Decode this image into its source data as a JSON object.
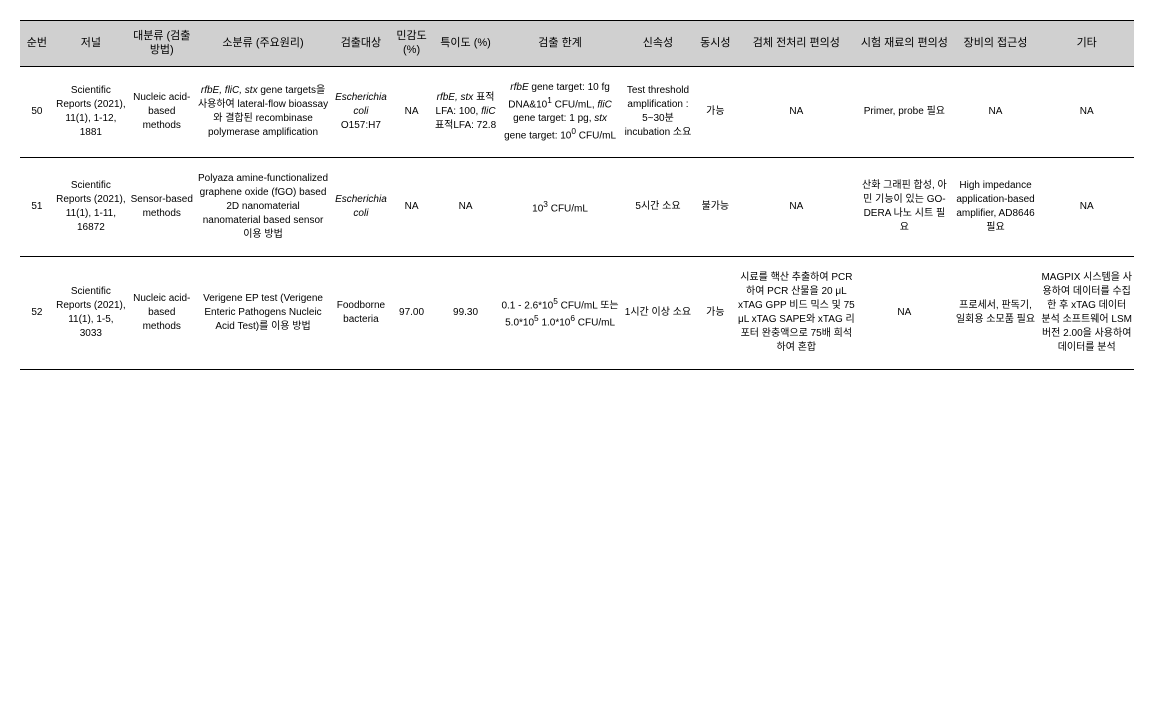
{
  "header": {
    "num": "순번",
    "journal": "저널",
    "category": "대분류\n(검출방법)",
    "subcategory": "소분류\n(주요원리)",
    "target": "검출대상",
    "sensitivity": "민감도(%)",
    "specificity": "특이도\n(%)",
    "limit": "검출\n한계",
    "speed": "신속성",
    "simultaneity": "동시성",
    "pretreatment": "검체 전처리\n편의성",
    "test_material": "시험\n재료의\n편의성",
    "equipment": "장비의\n접근성",
    "etc": "기타"
  },
  "rows": [
    {
      "num": "50",
      "journal": "Scientific Reports (2021), 11(1), 1-12, 1881",
      "category": "Nucleic acid-based methods",
      "subcategory_pre": "",
      "subcategory_italic": "rfbE, fliC, stx",
      "subcategory_post": " gene targets을 사용하여 lateral-flow bioassay와 결합된 recombinase polymerase amplification",
      "target_italic": "Escherichia coli",
      "target_post": " O157:H7",
      "sensitivity": "NA",
      "specificity_html": "<span class=\"italic\">rfbE, stx</span> 표적LFA: 100, <span class=\"italic\">fliC</span> 표적LFA: 72.8",
      "limit_html": "<span class=\"italic\">rfbE</span> gene target: 10 fg DNA&10<sup>1</sup> CFU/mL, <span class=\"italic\">fliC</span> gene target: 1 pg, <span class=\"italic\">stx</span> gene target: 10<sup>0</sup> CFU/mL",
      "speed": "Test threshold amplification : 5~30분 incubation 소요",
      "simultaneity": "가능",
      "pretreatment": "NA",
      "test_material": "Primer, probe 필요",
      "equipment": "NA",
      "etc": "NA"
    },
    {
      "num": "51",
      "journal": "Scientific Reports (2021), 11(1), 1-11, 16872",
      "category": "Sensor-based methods",
      "subcategory_pre": "Polyaza amine-functionalized graphene oxide (fGO) based 2D nanomaterial nanomaterial based sensor 이용 방법",
      "subcategory_italic": "",
      "subcategory_post": "",
      "target_italic": "Escherichia coli",
      "target_post": "",
      "sensitivity": "NA",
      "specificity_html": "NA",
      "limit_html": "10<sup>3</sup> CFU/mL",
      "speed": "5시간 소요",
      "simultaneity": "불가능",
      "pretreatment": "NA",
      "test_material": "산화 그래핀 합성, 아민 기능이 있는 GO-DERA 나노 시트 필요",
      "equipment": "High impedance application-based amplifier, AD8646 필요",
      "etc": "NA"
    },
    {
      "num": "52",
      "journal": "Scientific Reports (2021), 11(1), 1-5, 3033",
      "category": "Nucleic acid-based methods",
      "subcategory_pre": "Verigene EP test (Verigene Enteric Pathogens Nucleic Acid Test)를 이용 방법",
      "subcategory_italic": "",
      "subcategory_post": "",
      "target_italic": "",
      "target_post": "Foodborne bacteria",
      "sensitivity": "97.00",
      "specificity_html": "99.30",
      "limit_html": "0.1 - 2.6*10<sup>5</sup> CFU/mL 또는 5.0*10<sup>5</sup> 1.0*10<sup>6</sup> CFU/mL",
      "speed": "1시간 이상 소요",
      "simultaneity": "가능",
      "pretreatment": "시료를 핵산 추출하여 PCR하여 PCR 산물을 20 μL xTAG GPP 비드 믹스 및 75 μL xTAG SAPE와 xTAG 리포터 완충액으로 75배 희석하여 혼합",
      "test_material": "NA",
      "equipment": "프로세서, 판독기, 일회용 소모품 필요",
      "etc": "MAGPIX 시스템을 사용하여 데이터를 수집한 후 xTAG 데이터 분석 소프트웨어 LSM 버전 2.00을 사용하여 데이터를 분석"
    }
  ]
}
